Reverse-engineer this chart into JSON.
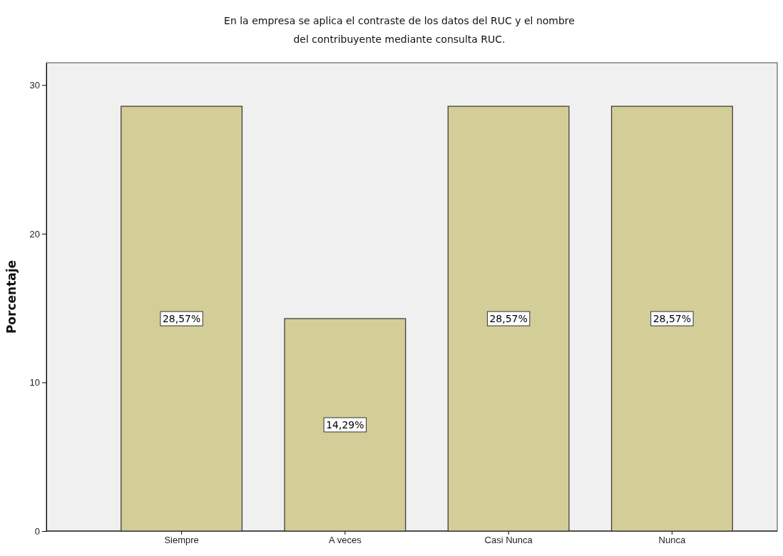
{
  "chart_data": {
    "type": "bar",
    "title": "En la empresa se aplica el contraste de los datos del RUC y el nombre\ndel contribuyente mediante consulta RUC.",
    "ylabel": "Porcentaje",
    "categories": [
      "Siempre",
      "A veces",
      "Casi Nunca",
      "Nunca"
    ],
    "values": [
      28.57,
      14.29,
      28.57,
      28.57
    ],
    "color": "#d3ce97",
    "value_labels": [
      "28,57%",
      "14,29%",
      "28,57%",
      "28,57%"
    ],
    "ylim": [
      0,
      31.5
    ],
    "yticks": [
      0,
      10,
      20,
      30
    ],
    "grid": false
  }
}
